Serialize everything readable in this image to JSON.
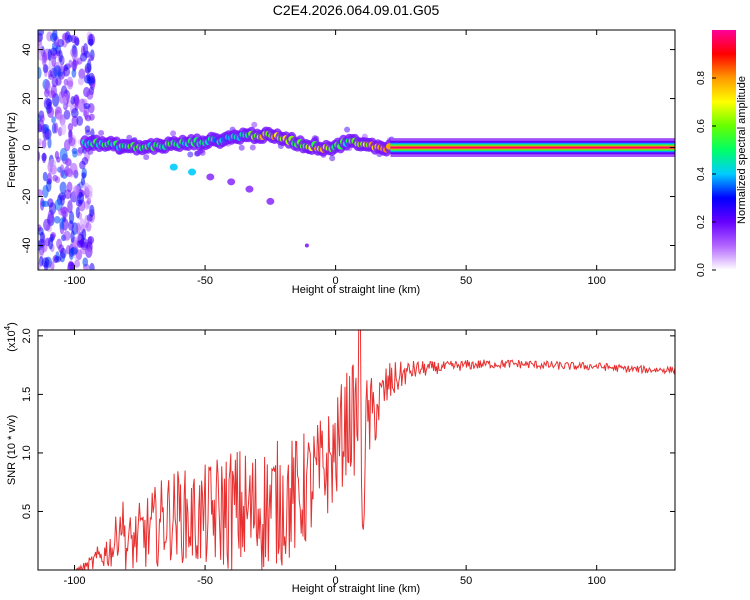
{
  "figure_title": "C2E4.2026.064.09.01.G05",
  "chart_data": [
    {
      "type": "heatmap",
      "title": "C2E4.2026.064.09.01.G05",
      "xlabel": "Height of straight line (km)",
      "ylabel": "Frequency (Hz)",
      "xlim": [
        -114,
        130
      ],
      "ylim": [
        -50,
        48
      ],
      "x_ticks": [
        -100,
        -50,
        0,
        50,
        100
      ],
      "x_tick_labels": [
        "-100",
        "-50",
        "0",
        "50",
        "100"
      ],
      "y_ticks": [
        40,
        20,
        0,
        -20,
        -40
      ],
      "y_tick_labels": [
        "40",
        "20",
        "0",
        "-20",
        "-40"
      ],
      "colorbar": {
        "label": "Normalized spectral amplitude",
        "range": [
          0,
          1
        ],
        "ticks": [
          0.0,
          0.2,
          0.4,
          0.6,
          0.8
        ],
        "tick_labels": [
          "0.0",
          "0.2",
          "0.4",
          "0.6",
          "0.8"
        ],
        "colormap": [
          "#ffffff",
          "#b366ff",
          "#6600ff",
          "#0000ff",
          "#00ccff",
          "#00ff66",
          "#66ff00",
          "#ffff00",
          "#ff9900",
          "#ff0000",
          "#ff0099"
        ]
      },
      "ridge": {
        "x": [
          -95,
          -85,
          -75,
          -65,
          -55,
          -45,
          -35,
          -28,
          -20,
          -12,
          -5,
          0,
          5,
          10,
          20,
          22,
          130
        ],
        "freq": [
          2,
          1,
          0,
          1,
          2,
          3,
          5,
          5,
          4,
          1,
          0,
          0,
          3,
          1,
          0,
          0,
          0
        ],
        "amplitude": [
          0.5,
          0.5,
          0.55,
          0.55,
          0.5,
          0.45,
          0.5,
          0.75,
          0.7,
          0.55,
          0.8,
          0.55,
          0.5,
          0.7,
          0.85,
          0.95,
          0.95
        ]
      },
      "secondary_branch": {
        "x": [
          -62,
          -55,
          -48,
          -40,
          -33,
          -25
        ],
        "freq": [
          -8,
          -10,
          -12,
          -14,
          -17,
          -22
        ]
      },
      "noise_region_x": [
        -114,
        -93
      ]
    },
    {
      "type": "line",
      "xlabel": "Height of straight line (km)",
      "ylabel": "SNR (10 * v/v)",
      "y_multiplier_label": "(x10",
      "y_multiplier_exp": "4",
      "y_multiplier_close": ")",
      "xlim": [
        -114,
        130
      ],
      "ylim": [
        0,
        2.05
      ],
      "x_ticks": [
        -100,
        -50,
        0,
        50,
        100
      ],
      "x_tick_labels": [
        "-100",
        "-50",
        "0",
        "50",
        "100"
      ],
      "y_ticks": [
        0.5,
        1.0,
        1.5,
        2.0
      ],
      "y_tick_labels": [
        "0.5",
        "1.0",
        "1.5",
        "2.0"
      ],
      "color": "#e83030",
      "series": [
        {
          "name": "SNR",
          "x": [
            -114,
            -100,
            -95,
            -90,
            -85,
            -82,
            -80,
            -75,
            -70,
            -65,
            -60,
            -55,
            -50,
            -45,
            -40,
            -35,
            -30,
            -25,
            -20,
            -15,
            -10,
            -5,
            0,
            3,
            5,
            7,
            9,
            10,
            12,
            15,
            18,
            20,
            25,
            30,
            40,
            50,
            60,
            70,
            80,
            90,
            100,
            110,
            120,
            130
          ],
          "y": [
            0.0,
            0.0,
            0.03,
            0.12,
            0.2,
            0.45,
            0.2,
            0.28,
            0.35,
            0.45,
            0.48,
            0.42,
            0.45,
            0.5,
            0.52,
            0.5,
            0.5,
            0.55,
            0.58,
            0.62,
            0.72,
            0.85,
            1.0,
            1.2,
            1.28,
            1.28,
            1.35,
            0.45,
            1.25,
            1.35,
            1.48,
            1.58,
            1.66,
            1.71,
            1.73,
            1.75,
            1.76,
            1.76,
            1.75,
            1.74,
            1.74,
            1.72,
            1.71,
            1.71
          ]
        }
      ],
      "noise_amplitude": {
        "x": [
          -100,
          -90,
          -80,
          -70,
          -60,
          -50,
          -40,
          -30,
          -20,
          -10,
          0,
          10,
          15,
          20,
          25,
          30,
          40,
          60,
          130
        ],
        "amp": [
          0.0,
          0.12,
          0.25,
          0.35,
          0.4,
          0.45,
          0.55,
          0.55,
          0.55,
          0.5,
          0.45,
          0.5,
          0.3,
          0.2,
          0.12,
          0.08,
          0.05,
          0.04,
          0.03
        ]
      }
    }
  ]
}
